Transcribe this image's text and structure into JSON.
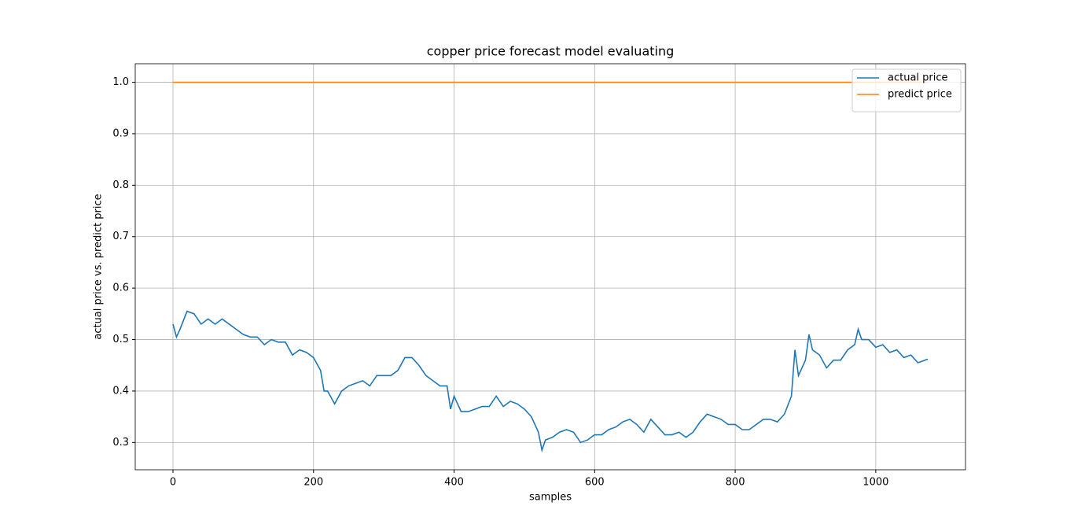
{
  "chart_data": {
    "type": "line",
    "title": "copper price forecast model evaluating",
    "xlabel": "samples",
    "ylabel": "actual price vs. predict price",
    "xlim": [
      -53.7,
      1127.7
    ],
    "ylim": [
      0.247,
      1.036
    ],
    "xticks": [
      0,
      200,
      400,
      600,
      800,
      1000
    ],
    "yticks": [
      0.3,
      0.4,
      0.5,
      0.6,
      0.7,
      0.8,
      0.9,
      {
        "value": 1,
        "label": "1.0"
      }
    ],
    "grid": true,
    "legend": "upper right",
    "series": [
      {
        "name": "actual price",
        "color": "#1f77b4",
        "x": [
          0,
          5,
          10,
          20,
          30,
          40,
          50,
          60,
          70,
          80,
          90,
          100,
          110,
          120,
          130,
          140,
          150,
          160,
          170,
          180,
          190,
          200,
          210,
          215,
          220,
          230,
          240,
          250,
          260,
          270,
          280,
          290,
          300,
          310,
          320,
          330,
          340,
          350,
          360,
          370,
          380,
          390,
          395,
          400,
          410,
          420,
          430,
          440,
          450,
          460,
          470,
          480,
          490,
          500,
          510,
          520,
          525,
          530,
          540,
          550,
          560,
          570,
          580,
          590,
          600,
          610,
          620,
          630,
          640,
          650,
          660,
          670,
          680,
          690,
          700,
          710,
          720,
          730,
          740,
          750,
          760,
          770,
          780,
          790,
          800,
          810,
          820,
          830,
          840,
          850,
          860,
          870,
          880,
          885,
          890,
          900,
          905,
          910,
          920,
          930,
          940,
          950,
          960,
          970,
          975,
          980,
          990,
          1000,
          1010,
          1020,
          1030,
          1040,
          1050,
          1060,
          1070,
          1074
        ],
        "values": [
          0.53,
          0.505,
          0.52,
          0.555,
          0.55,
          0.53,
          0.54,
          0.53,
          0.54,
          0.53,
          0.52,
          0.51,
          0.505,
          0.505,
          0.49,
          0.5,
          0.495,
          0.495,
          0.47,
          0.48,
          0.475,
          0.465,
          0.44,
          0.4,
          0.4,
          0.375,
          0.4,
          0.41,
          0.415,
          0.42,
          0.41,
          0.43,
          0.43,
          0.43,
          0.44,
          0.465,
          0.465,
          0.45,
          0.43,
          0.42,
          0.41,
          0.41,
          0.365,
          0.39,
          0.36,
          0.36,
          0.365,
          0.37,
          0.37,
          0.39,
          0.37,
          0.38,
          0.375,
          0.365,
          0.35,
          0.32,
          0.285,
          0.305,
          0.31,
          0.32,
          0.325,
          0.32,
          0.3,
          0.305,
          0.315,
          0.315,
          0.325,
          0.33,
          0.34,
          0.345,
          0.335,
          0.32,
          0.345,
          0.33,
          0.315,
          0.315,
          0.32,
          0.31,
          0.32,
          0.34,
          0.355,
          0.35,
          0.345,
          0.335,
          0.335,
          0.325,
          0.325,
          0.335,
          0.345,
          0.345,
          0.34,
          0.355,
          0.39,
          0.48,
          0.43,
          0.46,
          0.51,
          0.48,
          0.47,
          0.445,
          0.46,
          0.46,
          0.48,
          0.49,
          0.52,
          0.5,
          0.5,
          0.485,
          0.49,
          0.475,
          0.48,
          0.465,
          0.47,
          0.455,
          0.46,
          0.462
        ]
      },
      {
        "name": "predict price",
        "color": "#ff7f0e",
        "x": [
          0,
          1074
        ],
        "values": [
          1,
          1
        ]
      }
    ]
  }
}
